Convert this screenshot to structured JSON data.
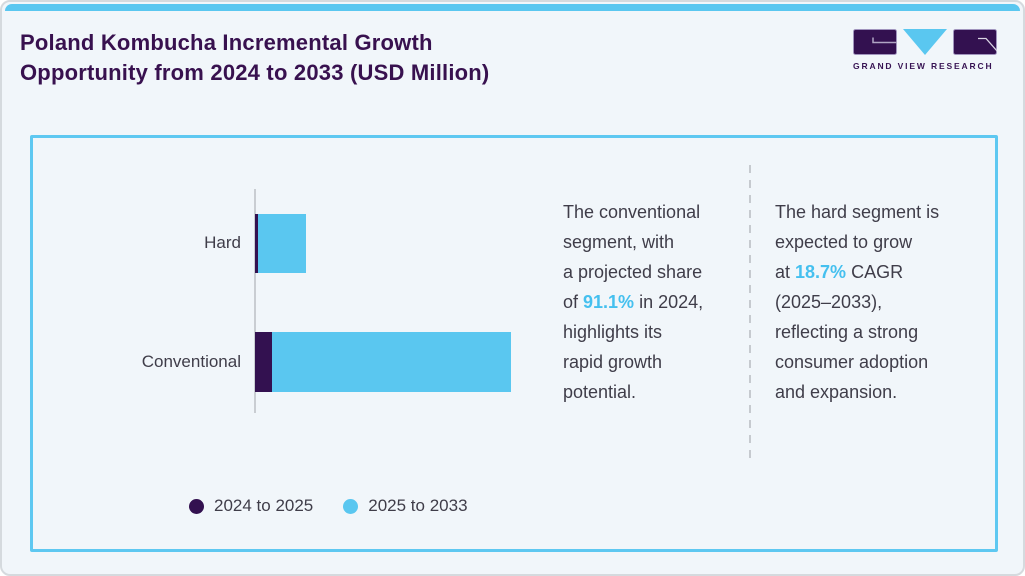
{
  "page": {
    "background": "#f1f6fa",
    "accent_cyan": "#5ac7f0",
    "brand_purple": "#331150",
    "title_color": "#38114f",
    "body_text_color": "#3f3d49"
  },
  "header": {
    "title": "Poland Kombucha Incremental Growth\nOpportunity from 2024 to 2033 (USD Million)",
    "logo_text": "GRAND VIEW RESEARCH"
  },
  "chart_data": {
    "type": "bar",
    "orientation": "horizontal",
    "title": "Poland Kombucha Incremental Growth Opportunity from 2024 to 2033 (USD Million)",
    "categories": [
      "Hard",
      "Conventional"
    ],
    "series": [
      {
        "name": "2024 to 2025",
        "color": "#331150",
        "values": [
          1.2,
          7.0
        ]
      },
      {
        "name": "2025 to 2033",
        "color": "#5ac7f0",
        "values": [
          20.1,
          100
        ]
      }
    ],
    "values_unit": "percent of longest bar",
    "value_axis_visible": false,
    "grid": false,
    "legend_position": "bottom-left"
  },
  "callouts": [
    {
      "pre": "The conventional\nsegment, with\na projected share\nof ",
      "highlight": "91.1%",
      "post": " in 2024,\nhighlights its\nrapid growth\npotential."
    },
    {
      "pre": "The hard segment is\nexpected to grow\nat ",
      "highlight": "18.7%",
      "post": " CAGR\n(2025–2033),\nreflecting a strong\nconsumer adoption\nand expansion."
    }
  ]
}
